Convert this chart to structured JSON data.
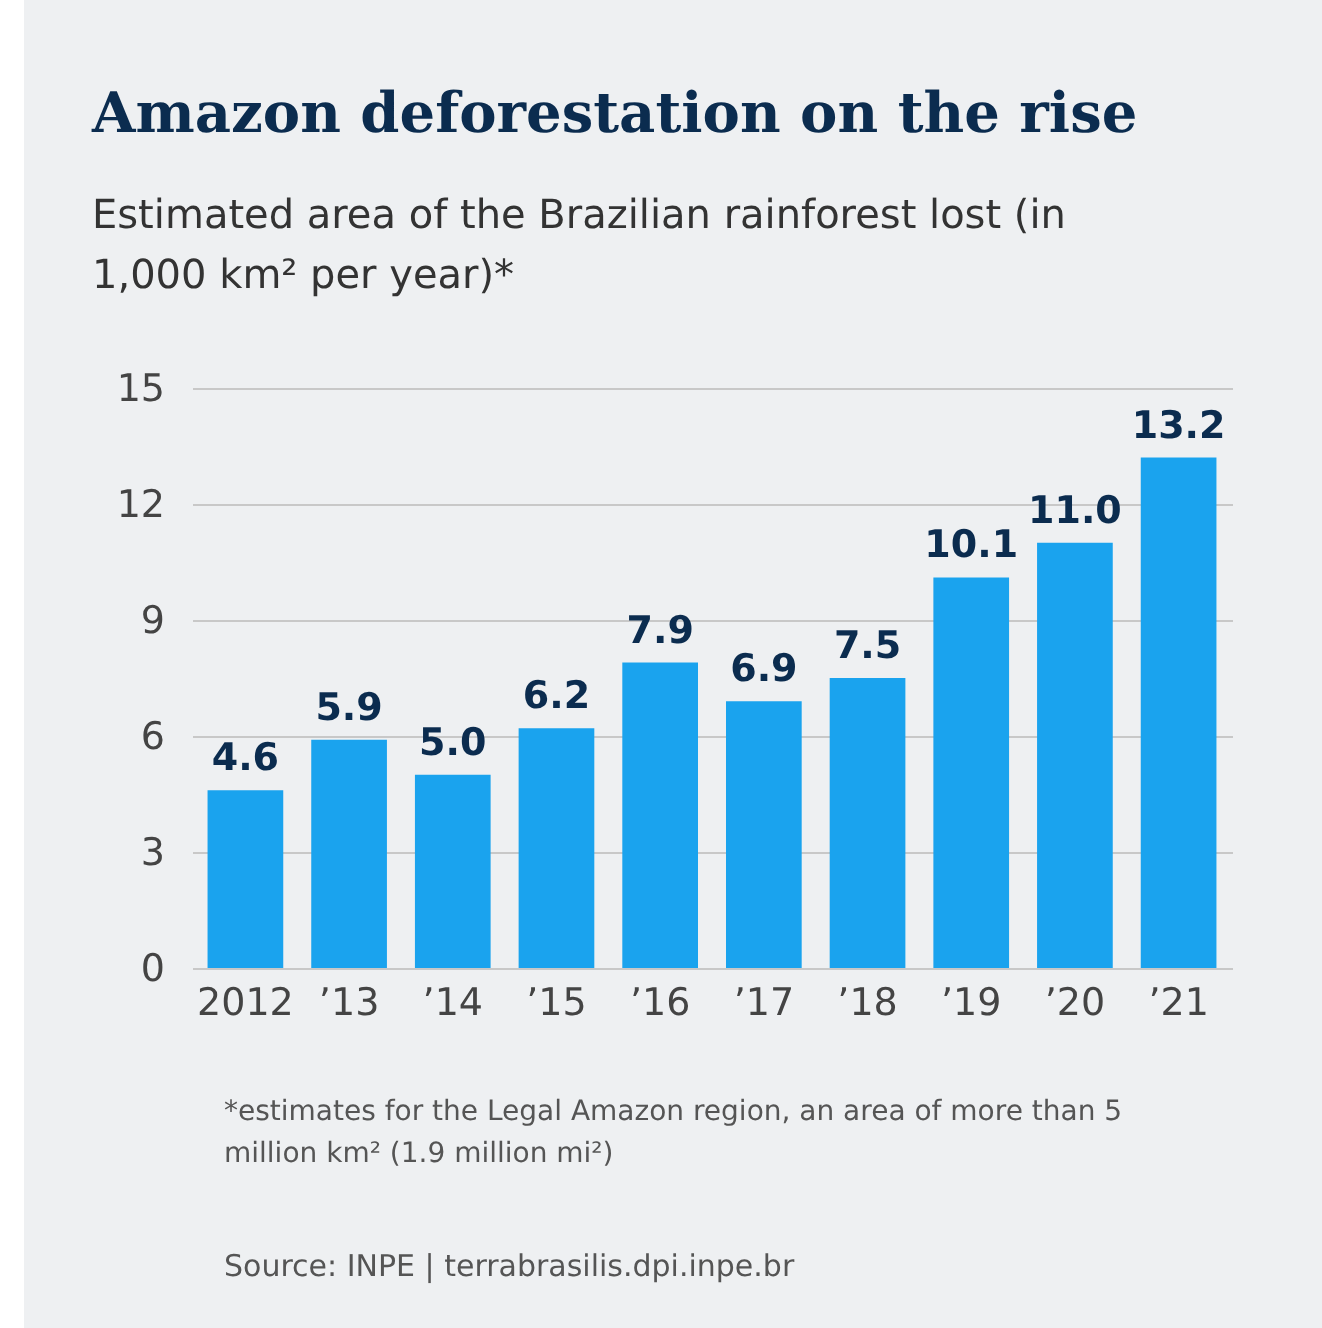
{
  "chart_data": {
    "type": "bar",
    "title": "Amazon deforestation on the rise",
    "subtitle": "Estimated area of the Brazilian rainforest lost (in 1,000 km² per year)*",
    "categories": [
      "2012",
      "’13",
      "’14",
      "’15",
      "’16",
      "’17",
      "’18",
      "’19",
      "’20",
      "’21"
    ],
    "values": [
      4.6,
      5.9,
      5.0,
      6.2,
      7.9,
      6.9,
      7.5,
      10.1,
      11.0,
      13.2
    ],
    "value_labels": [
      "4.6",
      "5.9",
      "5.0",
      "6.2",
      "7.9",
      "6.9",
      "7.5",
      "10.1",
      "11.0",
      "13.2"
    ],
    "color": "#1aa3ee",
    "ylim": [
      0,
      15
    ],
    "yticks": [
      0,
      3,
      6,
      9,
      12,
      15
    ],
    "grid": "y",
    "annotations": [
      "*estimates for the Legal Amazon region, an area of more than 5 million km² (1.9 million mi²)",
      "Source: INPE | terrabrasilis.dpi.inpe.br"
    ]
  }
}
